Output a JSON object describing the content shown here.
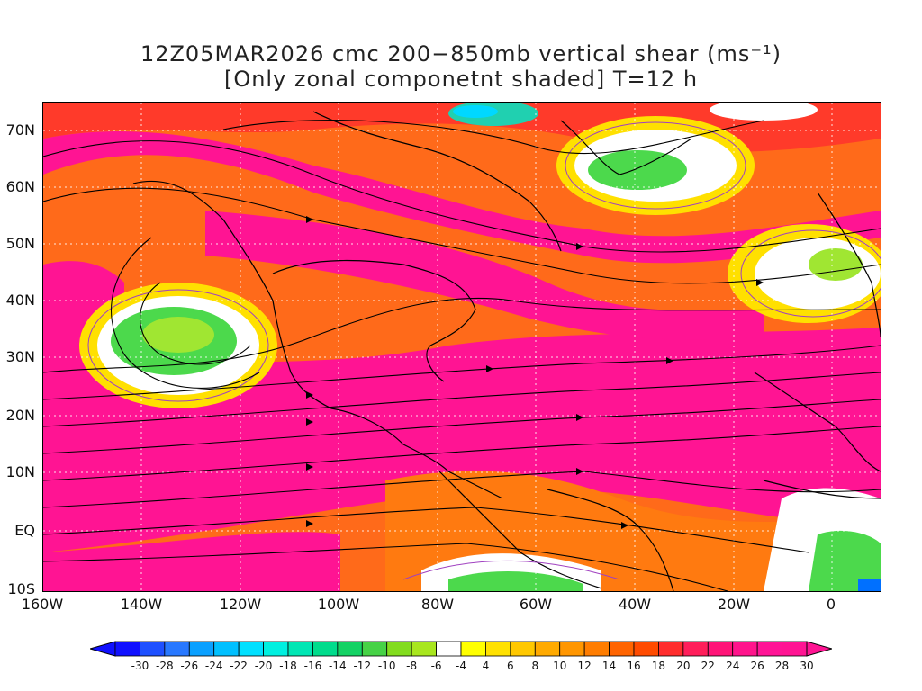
{
  "title": {
    "line1": "12Z05MAR2026 cmc 200−850mb vertical shear (ms⁻¹)",
    "line2": "[Only zonal componetnt shaded] T=12 h"
  },
  "map": {
    "lat_labels": [
      "70N",
      "60N",
      "50N",
      "40N",
      "30N",
      "20N",
      "10N",
      "EQ",
      "10S"
    ],
    "lon_labels": [
      "160W",
      "140W",
      "120W",
      "100W",
      "80W",
      "60W",
      "40W",
      "20W",
      "0"
    ],
    "colors": {
      "magenta": "#ff1493",
      "pink": "#ff66aa",
      "red": "#ff2a2a",
      "orange": "#ff8c1a",
      "yellow": "#ffe000",
      "white": "#ffffff",
      "lime": "#a0e632",
      "green": "#4cd94c",
      "teal": "#20d0b0",
      "cyan": "#00d8ff",
      "blue": "#0070ff",
      "coast": "#000000",
      "contour": "#a040c0"
    }
  },
  "colorbar": {
    "labels": [
      "-30",
      "-28",
      "-26",
      "-24",
      "-22",
      "-20",
      "-18",
      "-16",
      "-14",
      "-12",
      "-10",
      "-8",
      "-6",
      "-4",
      "4",
      "6",
      "8",
      "10",
      "12",
      "14",
      "16",
      "18",
      "20",
      "22",
      "24",
      "26",
      "28",
      "30"
    ],
    "colors": [
      "#1010ff",
      "#1e50ff",
      "#2878ff",
      "#0aa0ff",
      "#00c0ff",
      "#00e0ff",
      "#00f0e0",
      "#00e6b4",
      "#00dc8c",
      "#14d264",
      "#46d246",
      "#82dc1e",
      "#a8e61e",
      "#ffffff",
      "#ffff00",
      "#ffe100",
      "#ffc800",
      "#ffaa00",
      "#ff9600",
      "#ff7d00",
      "#ff6400",
      "#ff4b00",
      "#ff2d2d",
      "#ff1e5a",
      "#ff1478",
      "#ff148c",
      "#ff1496",
      "#ff1493"
    ]
  }
}
